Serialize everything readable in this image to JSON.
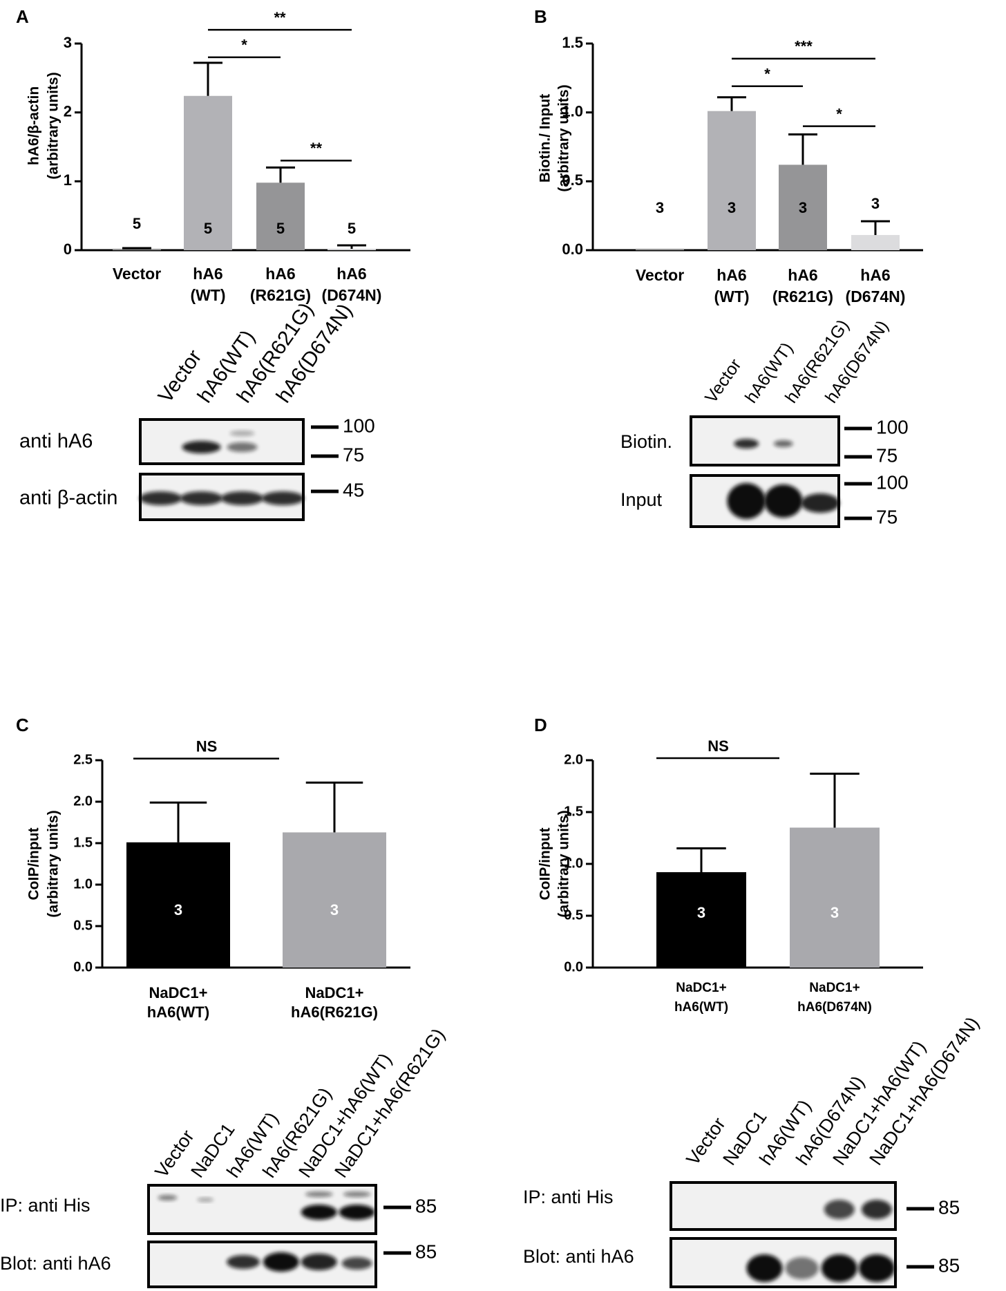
{
  "panels": [
    {
      "letter": "A",
      "chart_data": {
        "type": "bar",
        "ylabel": "hA6/β-actin",
        "ylabel2": "(arbitrary units)",
        "ylim": [
          0,
          3
        ],
        "yticks": [
          "0",
          "1",
          "2",
          "3"
        ],
        "categories": [
          [
            "Vector"
          ],
          [
            "hA6",
            "(WT)"
          ],
          [
            "hA6",
            "(R621G)"
          ],
          [
            "hA6",
            "(D674N)"
          ]
        ],
        "values": [
          0.01,
          2.24,
          0.98,
          0.02
        ],
        "errors": [
          0.02,
          0.48,
          0.22,
          0.05
        ],
        "n": [
          "5",
          "5",
          "5",
          "5"
        ],
        "colors": [
          "#a8a8a8",
          "#b2b2b6",
          "#959597",
          "#d2d2d4"
        ],
        "significance": [
          {
            "from": 1,
            "to": 3,
            "label": "**",
            "y": 3.2
          },
          {
            "from": 1,
            "to": 2,
            "label": "*",
            "y": 2.8
          },
          {
            "from": 2,
            "to": 3,
            "label": "**",
            "y": 1.3
          }
        ]
      },
      "blot": {
        "lanes": [
          "Vector",
          "hA6(WT)",
          "hA6(R621G)",
          "hA6(D674N)"
        ],
        "rows": [
          {
            "label": "anti hA6",
            "markers": [
              "100",
              "75"
            ]
          },
          {
            "label": "anti β-actin",
            "markers": [
              "45"
            ]
          }
        ]
      }
    },
    {
      "letter": "B",
      "chart_data": {
        "type": "bar",
        "ylabel": "Biotin./ Input",
        "ylabel2": "(arbitrary units)",
        "ylim": [
          0,
          1.5
        ],
        "yticks": [
          "0.0",
          "0.5",
          "1.0",
          "1.5"
        ],
        "categories": [
          [
            "Vector"
          ],
          [
            "hA6",
            "(WT)"
          ],
          [
            "hA6",
            "(R621G)"
          ],
          [
            "hA6",
            "(D674N)"
          ]
        ],
        "values": [
          0,
          1.01,
          0.62,
          0.11
        ],
        "errors": [
          0,
          0.1,
          0.22,
          0.1
        ],
        "n": [
          "3",
          "3",
          "3",
          "3"
        ],
        "colors": [
          "#a8a8a8",
          "#b2b2b6",
          "#959597",
          "#dcdcde"
        ],
        "significance": [
          {
            "from": 1,
            "to": 3,
            "label": "***",
            "y": 1.39
          },
          {
            "from": 1,
            "to": 2,
            "label": "*",
            "y": 1.19
          },
          {
            "from": 2,
            "to": 3,
            "label": "*",
            "y": 0.9
          }
        ]
      },
      "blot": {
        "lanes": [
          "Vector",
          "hA6(WT)",
          "hA6(R621G)",
          "hA6(D674N)"
        ],
        "rows": [
          {
            "label": "Biotin.",
            "markers": [
              "100",
              "75"
            ]
          },
          {
            "label": "Input",
            "markers": [
              "100",
              "75"
            ]
          }
        ]
      }
    },
    {
      "letter": "C",
      "chart_data": {
        "type": "bar",
        "ylabel": "CoIP/input",
        "ylabel2": "(arbitrary units)",
        "ylim": [
          0,
          2.5
        ],
        "yticks": [
          "0.0",
          "0.5",
          "1.0",
          "1.5",
          "2.0",
          "2.5"
        ],
        "categories": [
          [
            "NaDC1+",
            "hA6(WT)"
          ],
          [
            "NaDC1+",
            "hA6(R621G)"
          ]
        ],
        "values": [
          1.51,
          1.63
        ],
        "errors": [
          0.48,
          0.6
        ],
        "n": [
          "3",
          "3"
        ],
        "colors": [
          "#000000",
          "#a9a9ad"
        ],
        "significance": [
          {
            "from": 0,
            "to": 1,
            "label": "NS",
            "y": 2.52
          }
        ]
      },
      "blot": {
        "lanes": [
          "Vector",
          "NaDC1",
          "hA6(WT)",
          "hA6(R621G)",
          "NaDC1+hA6(WT)",
          "NaDC1+hA6(R621G)"
        ],
        "rows": [
          {
            "label": "IP: anti His",
            "markers": [
              "85"
            ]
          },
          {
            "label": "Blot: anti hA6",
            "markers": [
              "85"
            ]
          }
        ]
      }
    },
    {
      "letter": "D",
      "chart_data": {
        "type": "bar",
        "ylabel": "CoIP/input",
        "ylabel2": "(arbitrary units)",
        "ylim": [
          0,
          2.0
        ],
        "yticks": [
          "0.0",
          "0.5",
          "1.0",
          "1.5",
          "2.0"
        ],
        "categories": [
          [
            "NaDC1+",
            "hA6(WT)"
          ],
          [
            "NaDC1+",
            "hA6(D674N)"
          ]
        ],
        "values": [
          0.92,
          1.35
        ],
        "errors": [
          0.23,
          0.52
        ],
        "n": [
          "3",
          "3"
        ],
        "colors": [
          "#000000",
          "#a9a9ad"
        ],
        "significance": [
          {
            "from": 0,
            "to": 1,
            "label": "NS",
            "y": 2.02
          }
        ]
      },
      "blot": {
        "lanes": [
          "Vector",
          "NaDC1",
          "hA6(WT)",
          "hA6(D674N)",
          "NaDC1+hA6(WT)",
          "NaDC1+hA6(D674N)"
        ],
        "rows": [
          {
            "label": "IP: anti His",
            "markers": [
              "85"
            ]
          },
          {
            "label": "Blot: anti hA6",
            "markers": [
              "85"
            ]
          }
        ]
      }
    }
  ]
}
